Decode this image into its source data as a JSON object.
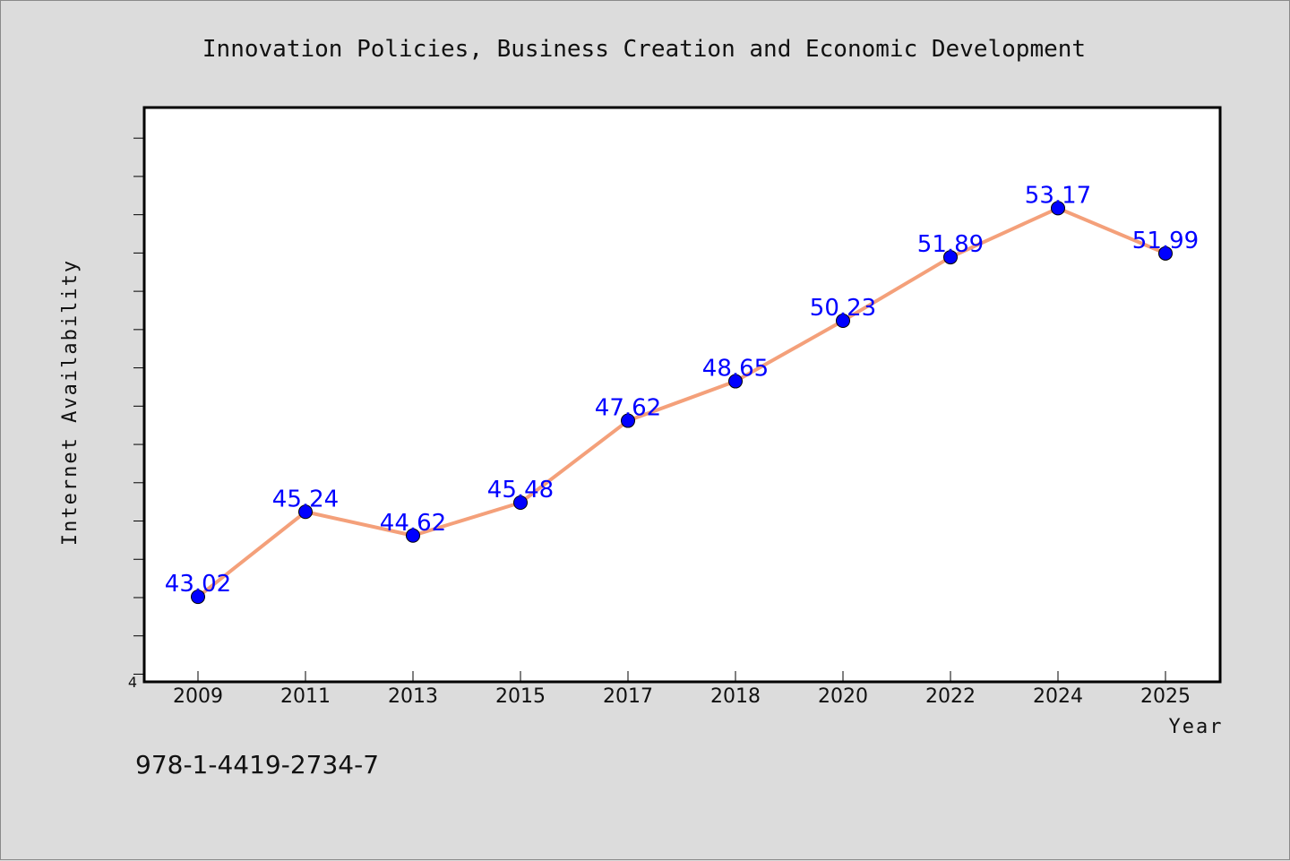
{
  "chart_data": {
    "type": "line",
    "title": "Innovation Policies, Business Creation and Economic Development",
    "xlabel": "Year",
    "ylabel": "Internet Availability",
    "categories": [
      "2009",
      "2011",
      "2013",
      "2015",
      "2017",
      "2018",
      "2020",
      "2022",
      "2024",
      "2025"
    ],
    "values": [
      43.02,
      45.24,
      44.62,
      45.48,
      47.62,
      48.65,
      50.23,
      51.89,
      53.17,
      51.99
    ],
    "value_labels": [
      "43.02",
      "45.24",
      "44.62",
      "45.48",
      "47.62",
      "48.65",
      "50.23",
      "51.89",
      "53.17",
      "51.99"
    ],
    "ylim": [
      40.8,
      55.8
    ],
    "y_min_label": "4",
    "grid": false,
    "legend": "none",
    "colors": {
      "line": "#f4a07a",
      "marker": "#0000ff",
      "label": "#0000ff",
      "background": "#dcdcdc",
      "plot_background": "#ffffff"
    }
  },
  "footer": {
    "isbn": "978-1-4419-2734-7"
  }
}
